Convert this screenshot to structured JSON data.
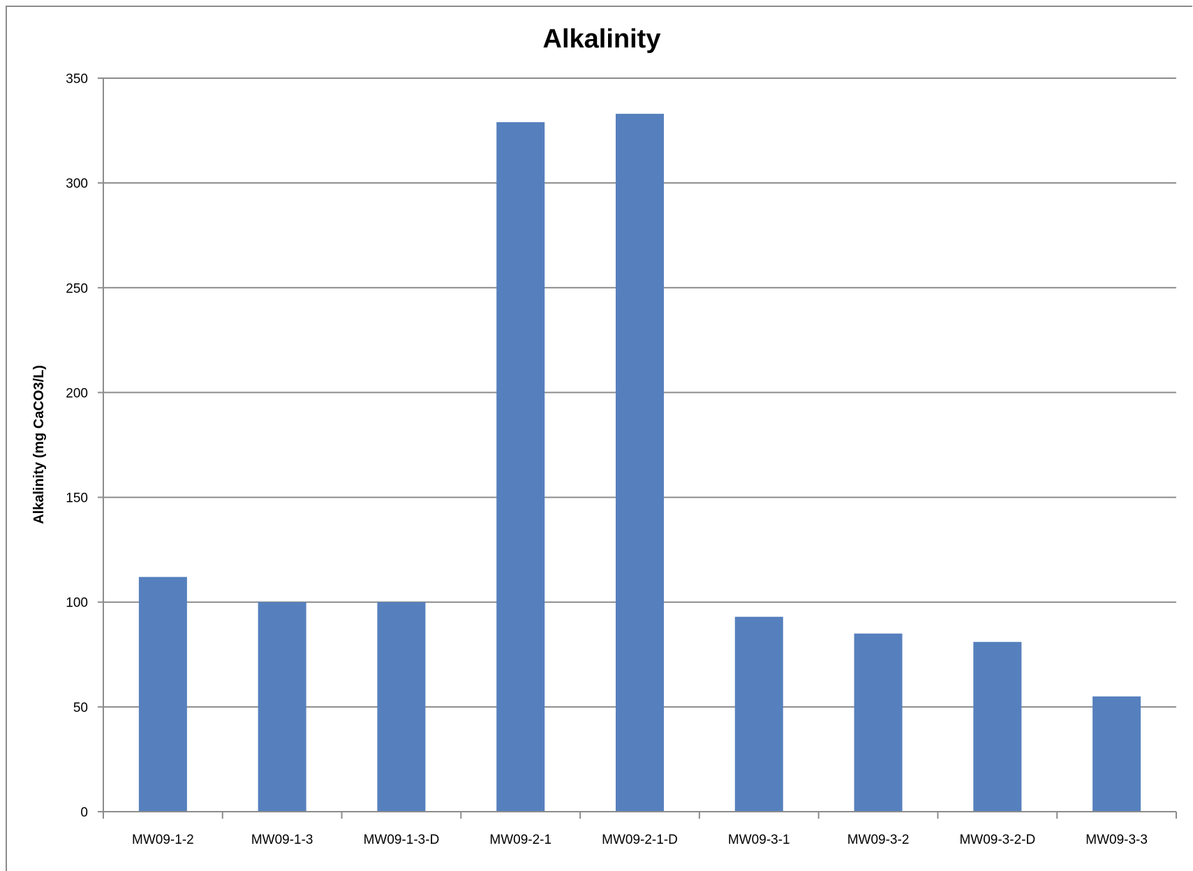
{
  "chart_data": {
    "type": "bar",
    "title": "Alkalinity",
    "xlabel": "",
    "ylabel": "Alkalinity (mg CaCO3/L)",
    "ylim": [
      0,
      350
    ],
    "yticks": [
      0,
      50,
      100,
      150,
      200,
      250,
      300,
      350
    ],
    "grid": true,
    "legend": "none",
    "bar_color": "#5680bd",
    "categories": [
      "MW09-1-2",
      "MW09-1-3",
      "MW09-1-3-D",
      "MW09-2-1",
      "MW09-2-1-D",
      "MW09-3-1",
      "MW09-3-2",
      "MW09-3-2-D",
      "MW09-3-3"
    ],
    "values": [
      112,
      100,
      100,
      329,
      333,
      93,
      85,
      81,
      55
    ]
  }
}
